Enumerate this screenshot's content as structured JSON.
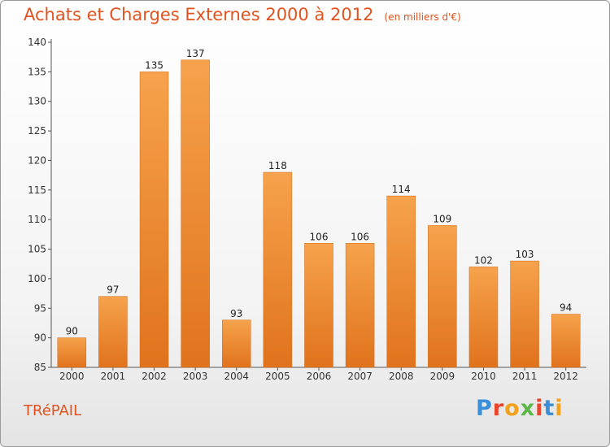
{
  "title": "Achats et Charges Externes 2000 à 2012",
  "subtitle": "(en milliers d'€)",
  "town": "TRéPAIL",
  "logo": {
    "text": "Proxiti",
    "colors": [
      "#3a8fd8",
      "#e8452c",
      "#f2a21c",
      "#5bb846",
      "#e8452c",
      "#3a8fd8",
      "#f2a21c"
    ]
  },
  "chart_data": {
    "type": "bar",
    "title": "Achats et Charges Externes 2000 à 2012",
    "subtitle": "(en milliers d'€)",
    "categories": [
      "2000",
      "2001",
      "2002",
      "2003",
      "2004",
      "2005",
      "2006",
      "2007",
      "2008",
      "2009",
      "2010",
      "2011",
      "2012"
    ],
    "values": [
      90,
      97,
      135,
      137,
      93,
      118,
      106,
      106,
      114,
      109,
      102,
      103,
      94
    ],
    "ylim": [
      85,
      140
    ],
    "yticks": [
      85,
      90,
      95,
      100,
      105,
      110,
      115,
      120,
      125,
      130,
      135,
      140
    ],
    "grid": false,
    "bar_color": "#f08a2e"
  }
}
